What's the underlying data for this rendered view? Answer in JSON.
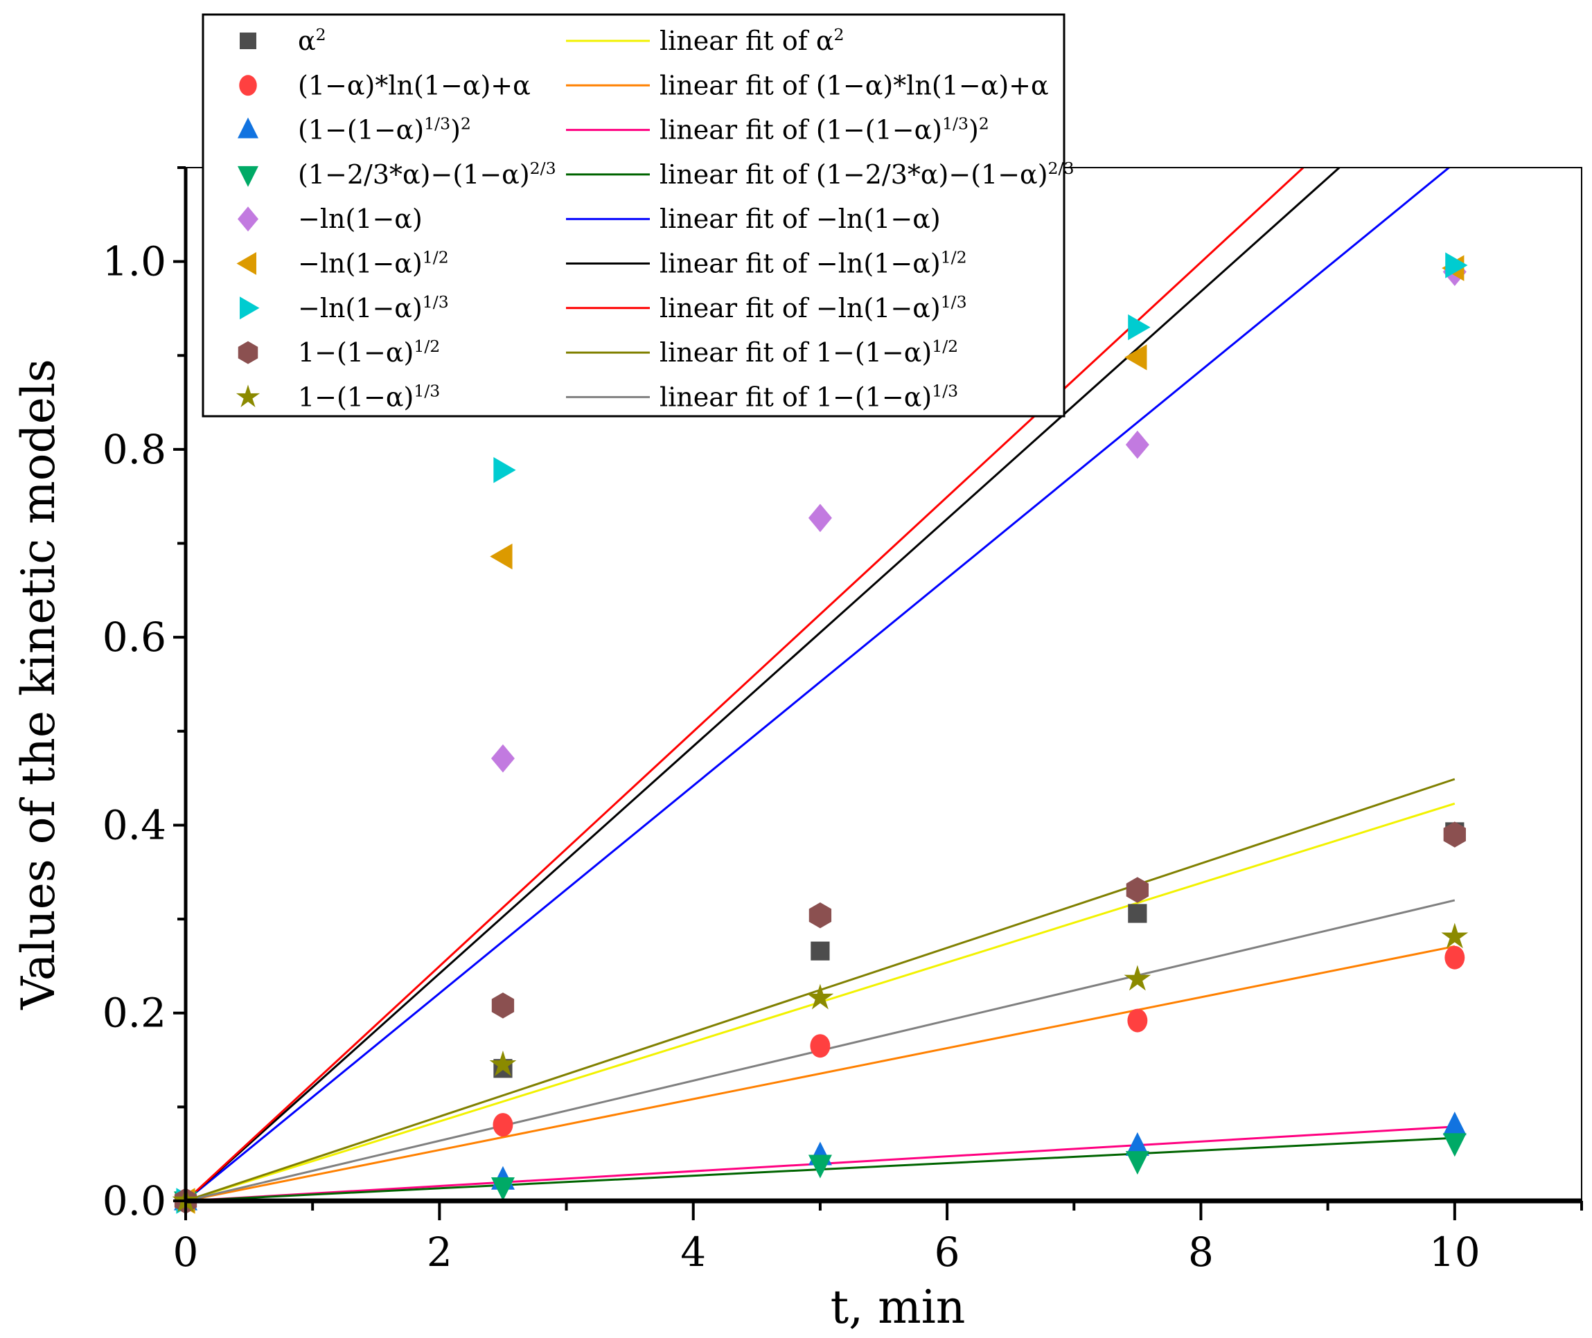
{
  "chart_data": {
    "type": "scatter",
    "title": "",
    "xlabel": "t, min",
    "ylabel": "Values of the kinetic models",
    "xlim": [
      0,
      11
    ],
    "ylim": [
      0,
      1.1
    ],
    "xticks": [
      0,
      2,
      4,
      6,
      8,
      10
    ],
    "xtick_labels": [
      "0",
      "2",
      "4",
      "6",
      "8",
      "10"
    ],
    "yticks": [
      0,
      0.2,
      0.4,
      0.6,
      0.8,
      1.0
    ],
    "ytick_labels": [
      "0.0",
      "0.2",
      "0.4",
      "0.6",
      "0.8",
      "1.0"
    ],
    "grid": false,
    "legend_position": "top-left",
    "x": [
      0,
      2.5,
      5,
      7.5,
      10
    ],
    "series": [
      {
        "name": "α^2",
        "label": [
          {
            "t": "α"
          },
          {
            "s": "2"
          }
        ],
        "marker": "square",
        "color": "#4d4d4d",
        "values": [
          0,
          0.141,
          0.266,
          0.306,
          0.393
        ]
      },
      {
        "name": "(1−α)*ln(1−α)+α",
        "label": [
          {
            "t": "(1−α)*ln(1−α)+α"
          }
        ],
        "marker": "circle",
        "color": "#ff4040",
        "values": [
          0,
          0.081,
          0.165,
          0.192,
          0.259
        ]
      },
      {
        "name": "(1−(1−α)^1/3)^2",
        "label": [
          {
            "t": "(1−(1−α)"
          },
          {
            "s": "1/3"
          },
          {
            "t": ")"
          },
          {
            "s": "2"
          }
        ],
        "marker": "triangle-up",
        "color": "#1173e0",
        "values": [
          0,
          0.022,
          0.048,
          0.058,
          0.08
        ]
      },
      {
        "name": "(1−2/3*α)−(1−α)^2/3",
        "label": [
          {
            "t": "(1−2/3*α)−(1−α)"
          },
          {
            "s": "2/3"
          }
        ],
        "marker": "triangle-down",
        "color": "#00aa66",
        "values": [
          0,
          0.015,
          0.039,
          0.043,
          0.062
        ]
      },
      {
        "name": "−ln(1−α)",
        "label": [
          {
            "t": "−ln(1−α)"
          }
        ],
        "marker": "diamond",
        "color": "#c27ae0",
        "values": [
          0,
          0.471,
          0.727,
          0.805,
          0.989
        ]
      },
      {
        "name": "−ln(1−α)^1/2",
        "label": [
          {
            "t": "−ln(1−α)"
          },
          {
            "s": "1/2"
          }
        ],
        "marker": "triangle-left",
        "color": "#dc9a00",
        "values": [
          0,
          0.686,
          null,
          0.898,
          0.993
        ]
      },
      {
        "name": "−ln(1−α)^1/3",
        "label": [
          {
            "t": "−ln(1−α)"
          },
          {
            "s": "1/3"
          }
        ],
        "marker": "triangle-right",
        "color": "#00ccd0",
        "values": [
          0,
          0.778,
          null,
          0.93,
          0.996
        ]
      },
      {
        "name": "1−(1−α)^1/2",
        "label": [
          {
            "t": "1−(1−α)"
          },
          {
            "s": "1/2"
          }
        ],
        "marker": "hexagon",
        "color": "#8b5050",
        "values": [
          0,
          0.208,
          0.304,
          0.331,
          0.39
        ]
      },
      {
        "name": "1−(1−α)^1/3",
        "label": [
          {
            "t": "1−(1−α)"
          },
          {
            "s": "1/3"
          }
        ],
        "marker": "star",
        "color": "#8b8a00",
        "values": [
          0,
          0.145,
          0.216,
          0.236,
          0.281
        ]
      }
    ],
    "fits": [
      {
        "name": "linear fit of α^2",
        "label": [
          {
            "t": "linear fit of α"
          },
          {
            "s": "2"
          }
        ],
        "color": "#f2f200",
        "slope": 0.0423,
        "x_range": [
          0,
          10
        ]
      },
      {
        "name": "linear fit of (1−α)*ln(1−α)+α",
        "label": [
          {
            "t": "linear fit of (1−α)*ln(1−α)+α"
          }
        ],
        "color": "#ff8000",
        "slope": 0.0271,
        "x_range": [
          0,
          10
        ]
      },
      {
        "name": "linear fit of (1−(1−α)^1/3)^2",
        "label": [
          {
            "t": "linear fit of (1−(1−α)"
          },
          {
            "s": "1/3"
          },
          {
            "t": ")"
          },
          {
            "s": "2"
          }
        ],
        "color": "#ff0080",
        "slope": 0.0079,
        "x_range": [
          0,
          10
        ]
      },
      {
        "name": "linear fit of (1−2/3*α)−(1−α)^2/3",
        "label": [
          {
            "t": "linear fit of (1−2/3*α)−(1−α)"
          },
          {
            "s": "2/3"
          }
        ],
        "color": "#006400",
        "slope": 0.0067,
        "x_range": [
          0,
          10
        ]
      },
      {
        "name": "linear fit of −ln(1−α)",
        "label": [
          {
            "t": "linear fit of −ln(1−α)"
          }
        ],
        "color": "#0000ff",
        "slope": 0.1105,
        "x_range": [
          0,
          10
        ]
      },
      {
        "name": "linear fit of −ln(1−α)^1/2",
        "label": [
          {
            "t": "linear fit of −ln(1−α)"
          },
          {
            "s": "1/2"
          }
        ],
        "color": "#000000",
        "slope": 0.121,
        "x_range": [
          0,
          10
        ]
      },
      {
        "name": "linear fit of −ln(1−α)^1/3",
        "label": [
          {
            "t": "linear fit of −ln(1−α)"
          },
          {
            "s": "1/3"
          }
        ],
        "color": "#ff0000",
        "slope": 0.1249,
        "x_range": [
          0,
          10
        ]
      },
      {
        "name": "linear fit of 1−(1−α)^1/2",
        "label": [
          {
            "t": "linear fit of 1−(1−α)"
          },
          {
            "s": "1/2"
          }
        ],
        "color": "#808000",
        "slope": 0.0449,
        "x_range": [
          0,
          10
        ]
      },
      {
        "name": "linear fit of 1−(1−α)^1/3",
        "label": [
          {
            "t": "linear fit of 1−(1−α)"
          },
          {
            "s": "1/3"
          }
        ],
        "color": "#808080",
        "slope": 0.032,
        "x_range": [
          0,
          10
        ]
      }
    ]
  }
}
